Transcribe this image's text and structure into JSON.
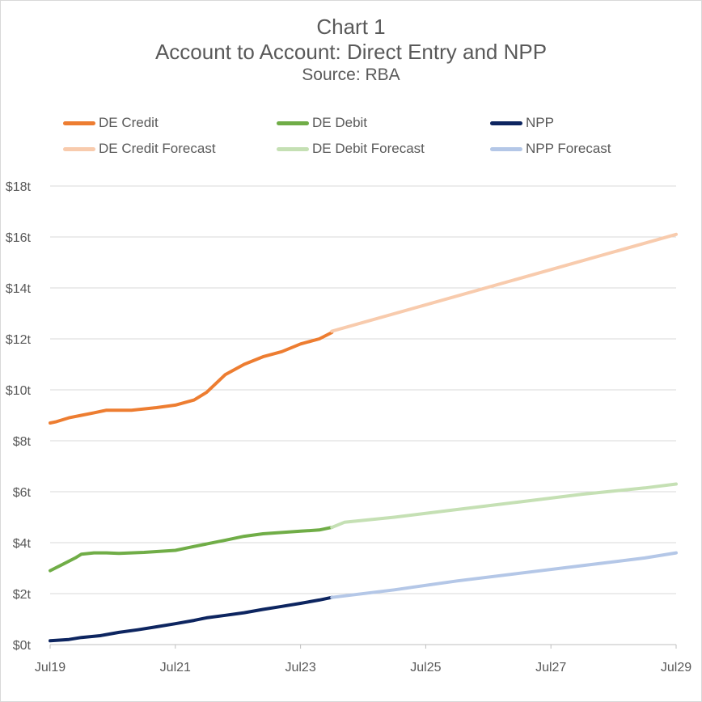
{
  "chart_data": {
    "type": "line",
    "title": "Chart 1",
    "subtitle": "Account to Account: Direct Entry and NPP",
    "source": "Source: RBA",
    "xlabel": "",
    "ylabel": "",
    "x_ticks": [
      "Jul19",
      "Jul21",
      "Jul23",
      "Jul25",
      "Jul27",
      "Jul29"
    ],
    "x_range": [
      2019.5,
      2029.5
    ],
    "y_ticks": [
      "$0t",
      "$2t",
      "$4t",
      "$6t",
      "$8t",
      "$10t",
      "$12t",
      "$14t",
      "$16t",
      "$18t"
    ],
    "ylim": [
      0,
      18
    ],
    "grid": "horizontal",
    "legend_position": "top",
    "colors": {
      "de_credit": "#ED7D31",
      "de_debit": "#70AD47",
      "npp": "#0D2560",
      "de_credit_forecast": "#F8CBAD",
      "de_debit_forecast": "#C5E0B4",
      "npp_forecast": "#B4C7E7",
      "grid": "#d9d9d9",
      "axis": "#bfbfbf"
    },
    "series": [
      {
        "name": "DE Credit",
        "color_key": "de_credit",
        "x": [
          2019.5,
          2019.6,
          2019.8,
          2020.0,
          2020.2,
          2020.4,
          2020.6,
          2020.8,
          2021.0,
          2021.2,
          2021.5,
          2021.8,
          2022.0,
          2022.3,
          2022.6,
          2022.9,
          2023.2,
          2023.5,
          2023.8,
          2024.0
        ],
        "values": [
          8.7,
          8.75,
          8.9,
          9.0,
          9.1,
          9.2,
          9.2,
          9.2,
          9.25,
          9.3,
          9.4,
          9.6,
          9.9,
          10.6,
          11.0,
          11.3,
          11.5,
          11.8,
          12.0,
          12.25
        ]
      },
      {
        "name": "DE Debit",
        "color_key": "de_debit",
        "x": [
          2019.5,
          2019.7,
          2019.9,
          2020.0,
          2020.2,
          2020.4,
          2020.6,
          2020.8,
          2021.0,
          2021.2,
          2021.5,
          2021.8,
          2022.0,
          2022.3,
          2022.6,
          2022.9,
          2023.2,
          2023.5,
          2023.8,
          2024.0
        ],
        "values": [
          2.9,
          3.15,
          3.4,
          3.55,
          3.6,
          3.6,
          3.58,
          3.6,
          3.62,
          3.65,
          3.7,
          3.85,
          3.95,
          4.1,
          4.25,
          4.35,
          4.4,
          4.45,
          4.5,
          4.6
        ]
      },
      {
        "name": "NPP",
        "color_key": "npp",
        "x": [
          2019.5,
          2019.8,
          2020.0,
          2020.3,
          2020.6,
          2020.9,
          2021.2,
          2021.5,
          2021.8,
          2022.0,
          2022.3,
          2022.6,
          2022.9,
          2023.2,
          2023.5,
          2023.8,
          2024.0
        ],
        "values": [
          0.15,
          0.2,
          0.28,
          0.35,
          0.48,
          0.58,
          0.7,
          0.82,
          0.95,
          1.05,
          1.15,
          1.25,
          1.38,
          1.5,
          1.62,
          1.75,
          1.85
        ]
      },
      {
        "name": "DE Credit Forecast",
        "color_key": "de_credit_forecast",
        "x": [
          2024.0,
          2029.5
        ],
        "values": [
          12.3,
          16.1
        ]
      },
      {
        "name": "DE Debit Forecast",
        "color_key": "de_debit_forecast",
        "x": [
          2024.0,
          2024.2,
          2025.0,
          2026.0,
          2027.0,
          2028.0,
          2029.0,
          2029.5
        ],
        "values": [
          4.6,
          4.8,
          5.0,
          5.3,
          5.6,
          5.9,
          6.15,
          6.3
        ]
      },
      {
        "name": "NPP Forecast",
        "color_key": "npp_forecast",
        "x": [
          2024.0,
          2025.0,
          2026.0,
          2027.0,
          2028.0,
          2029.0,
          2029.5
        ],
        "values": [
          1.85,
          2.15,
          2.5,
          2.8,
          3.1,
          3.4,
          3.6
        ]
      }
    ]
  },
  "legend": [
    {
      "label": "DE Credit",
      "color_key": "de_credit"
    },
    {
      "label": "DE Debit",
      "color_key": "de_debit"
    },
    {
      "label": "NPP",
      "color_key": "npp"
    },
    {
      "label": "DE Credit Forecast",
      "color_key": "de_credit_forecast"
    },
    {
      "label": "DE Debit Forecast",
      "color_key": "de_debit_forecast"
    },
    {
      "label": "NPP Forecast",
      "color_key": "npp_forecast"
    }
  ]
}
